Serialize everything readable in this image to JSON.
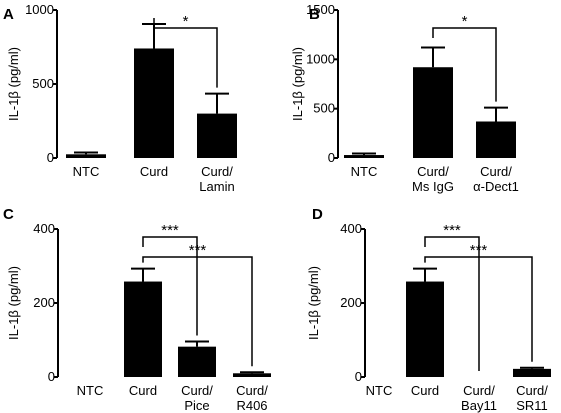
{
  "chart_data": [
    {
      "panel": "A",
      "type": "bar",
      "ylabel": "IL-1β (pg/ml)",
      "ylim": [
        0,
        1000
      ],
      "yticks": [
        0,
        500,
        1000
      ],
      "categories": [
        [
          "NTC"
        ],
        [
          "Curd"
        ],
        [
          "Curd/",
          "Lamin"
        ]
      ],
      "values": [
        25,
        740,
        300
      ],
      "errors": [
        12,
        165,
        135
      ],
      "significance": [
        {
          "from": 1,
          "to": 2,
          "label": "*"
        }
      ]
    },
    {
      "panel": "B",
      "type": "bar",
      "ylabel": "IL-1β (pg/ml)",
      "ylim": [
        0,
        1500
      ],
      "yticks": [
        0,
        500,
        1000,
        1500
      ],
      "categories": [
        [
          "NTC"
        ],
        [
          "Curd/",
          "Ms IgG"
        ],
        [
          "Curd/",
          "α-Dect1"
        ]
      ],
      "values": [
        30,
        920,
        370
      ],
      "errors": [
        15,
        200,
        140
      ],
      "significance": [
        {
          "from": 1,
          "to": 2,
          "label": "*"
        }
      ]
    },
    {
      "panel": "C",
      "type": "bar",
      "ylabel": "IL-1β (pg/ml)",
      "ylim": [
        0,
        400
      ],
      "yticks": [
        0,
        200,
        400
      ],
      "categories": [
        [
          "NTC"
        ],
        [
          "Curd"
        ],
        [
          "Curd/",
          "Pice"
        ],
        [
          "Curd/",
          "R406"
        ]
      ],
      "values": [
        0,
        258,
        82,
        10
      ],
      "errors": [
        0,
        35,
        14,
        3
      ],
      "significance": [
        {
          "from": 1,
          "to": 2,
          "label": "***"
        },
        {
          "from": 1,
          "to": 3,
          "label": "***"
        }
      ]
    },
    {
      "panel": "D",
      "type": "bar",
      "ylabel": "IL-1β (pg/ml)",
      "ylim": [
        0,
        400
      ],
      "yticks": [
        0,
        200,
        400
      ],
      "categories": [
        [
          "NTC"
        ],
        [
          "Curd"
        ],
        [
          "Curd/",
          "Bay11"
        ],
        [
          "Curd/",
          "SR11"
        ]
      ],
      "values": [
        0,
        258,
        0,
        22
      ],
      "errors": [
        0,
        35,
        0,
        3
      ],
      "significance": [
        {
          "from": 1,
          "to": 2,
          "label": "***"
        },
        {
          "from": 1,
          "to": 3,
          "label": "***"
        }
      ]
    }
  ]
}
